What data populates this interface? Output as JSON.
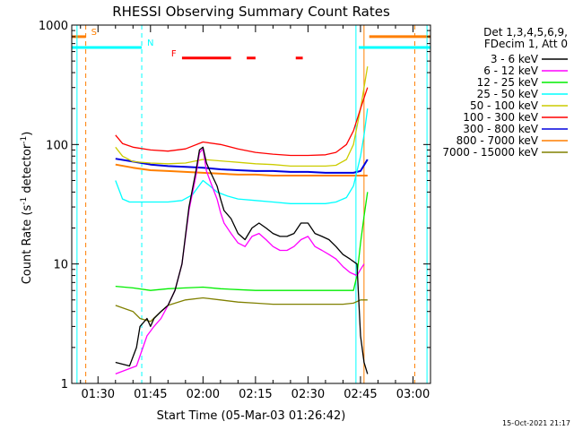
{
  "chart_data": {
    "type": "line",
    "title": "RHESSI Observing Summary Count Rates",
    "xlabel": "Start Time (05-Mar-03 01:26:42)",
    "ylabel_main": "Count Rate (s",
    "ylabel_sup": "-1",
    "ylabel_mid": " detector",
    "ylabel_sup2": "-1",
    "ylabel_end": ")",
    "yscale": "log",
    "ylim": [
      1,
      1000
    ],
    "xlim_minutes": [
      82.5,
      185
    ],
    "xticks": [
      {
        "label": "01:30",
        "minutes": 90
      },
      {
        "label": "01:45",
        "minutes": 105
      },
      {
        "label": "02:00",
        "minutes": 120
      },
      {
        "label": "02:15",
        "minutes": 135
      },
      {
        "label": "02:30",
        "minutes": 150
      },
      {
        "label": "02:45",
        "minutes": 165
      },
      {
        "label": "03:00",
        "minutes": 180
      }
    ],
    "yticks": [
      {
        "label": "1",
        "value": 1
      },
      {
        "label": "10",
        "value": 10
      },
      {
        "label": "100",
        "value": 100
      },
      {
        "label": "1000",
        "value": 1000
      }
    ],
    "legend_header": [
      "Det 1,3,4,5,6,9,",
      "FDecim 1, Att 0"
    ],
    "timestamp": "15-Oct-2021 21:17",
    "series": [
      {
        "name": "3 - 6 keV",
        "color": "#000000",
        "points": [
          [
            95,
            1.5
          ],
          [
            99,
            1.4
          ],
          [
            101,
            2
          ],
          [
            102,
            3
          ],
          [
            104,
            3.5
          ],
          [
            105,
            3
          ],
          [
            106,
            3.5
          ],
          [
            108,
            4
          ],
          [
            110,
            4.5
          ],
          [
            112,
            6
          ],
          [
            114,
            10
          ],
          [
            116,
            30
          ],
          [
            118,
            60
          ],
          [
            119,
            90
          ],
          [
            120,
            95
          ],
          [
            121,
            70
          ],
          [
            122,
            60
          ],
          [
            124,
            45
          ],
          [
            125,
            35
          ],
          [
            126,
            28
          ],
          [
            128,
            24
          ],
          [
            130,
            18
          ],
          [
            132,
            16
          ],
          [
            134,
            20
          ],
          [
            136,
            22
          ],
          [
            138,
            20
          ],
          [
            140,
            18
          ],
          [
            142,
            17
          ],
          [
            144,
            17
          ],
          [
            146,
            18
          ],
          [
            148,
            22
          ],
          [
            150,
            22
          ],
          [
            152,
            18
          ],
          [
            154,
            17
          ],
          [
            156,
            16
          ],
          [
            158,
            14
          ],
          [
            160,
            12
          ],
          [
            162,
            11
          ],
          [
            164,
            10
          ],
          [
            165,
            2.5
          ],
          [
            166,
            1.5
          ],
          [
            167,
            1.2
          ]
        ]
      },
      {
        "name": "6 - 12 keV",
        "color": "#ff00ff",
        "points": [
          [
            95,
            1.2
          ],
          [
            101,
            1.4
          ],
          [
            104,
            2.5
          ],
          [
            106,
            3
          ],
          [
            108,
            3.5
          ],
          [
            110,
            4.5
          ],
          [
            112,
            6
          ],
          [
            114,
            10
          ],
          [
            116,
            28
          ],
          [
            118,
            55
          ],
          [
            119,
            85
          ],
          [
            120,
            92
          ],
          [
            121,
            60
          ],
          [
            122,
            50
          ],
          [
            124,
            35
          ],
          [
            125,
            27
          ],
          [
            126,
            22
          ],
          [
            128,
            18
          ],
          [
            130,
            15
          ],
          [
            132,
            14
          ],
          [
            134,
            17
          ],
          [
            136,
            18
          ],
          [
            138,
            16
          ],
          [
            140,
            14
          ],
          [
            142,
            13
          ],
          [
            144,
            13
          ],
          [
            146,
            14
          ],
          [
            148,
            16
          ],
          [
            150,
            17
          ],
          [
            152,
            14
          ],
          [
            154,
            13
          ],
          [
            156,
            12
          ],
          [
            158,
            11
          ],
          [
            160,
            9.5
          ],
          [
            162,
            8.5
          ],
          [
            164,
            8
          ],
          [
            165,
            9
          ],
          [
            166,
            10
          ]
        ]
      },
      {
        "name": "12 - 25 keV",
        "color": "#00ee00",
        "points": [
          [
            95,
            6.5
          ],
          [
            100,
            6.3
          ],
          [
            105,
            6
          ],
          [
            110,
            6.2
          ],
          [
            115,
            6.3
          ],
          [
            120,
            6.4
          ],
          [
            125,
            6.2
          ],
          [
            130,
            6.1
          ],
          [
            135,
            6
          ],
          [
            140,
            6
          ],
          [
            145,
            6
          ],
          [
            150,
            6
          ],
          [
            155,
            6
          ],
          [
            160,
            6
          ],
          [
            163,
            6
          ],
          [
            164,
            8
          ],
          [
            165,
            15
          ],
          [
            166,
            25
          ],
          [
            167,
            40
          ]
        ]
      },
      {
        "name": "25 - 50 keV",
        "color": "#00ffff",
        "points": [
          [
            95,
            50
          ],
          [
            97,
            35
          ],
          [
            99,
            33
          ],
          [
            101,
            33
          ],
          [
            105,
            33
          ],
          [
            110,
            33
          ],
          [
            114,
            34
          ],
          [
            117,
            38
          ],
          [
            120,
            50
          ],
          [
            122,
            45
          ],
          [
            124,
            40
          ],
          [
            127,
            37
          ],
          [
            130,
            35
          ],
          [
            135,
            34
          ],
          [
            140,
            33
          ],
          [
            145,
            32
          ],
          [
            150,
            32
          ],
          [
            155,
            32
          ],
          [
            158,
            33
          ],
          [
            161,
            36
          ],
          [
            163,
            45
          ],
          [
            165,
            80
          ],
          [
            166,
            120
          ],
          [
            167,
            200
          ]
        ]
      },
      {
        "name": "50 - 100 keV",
        "color": "#cccc00",
        "points": [
          [
            95,
            95
          ],
          [
            97,
            80
          ],
          [
            100,
            72
          ],
          [
            105,
            70
          ],
          [
            110,
            69
          ],
          [
            115,
            70
          ],
          [
            120,
            75
          ],
          [
            125,
            73
          ],
          [
            130,
            71
          ],
          [
            135,
            69
          ],
          [
            140,
            68
          ],
          [
            145,
            66
          ],
          [
            150,
            66
          ],
          [
            155,
            66
          ],
          [
            158,
            67
          ],
          [
            161,
            75
          ],
          [
            163,
            100
          ],
          [
            165,
            200
          ],
          [
            166,
            300
          ],
          [
            167,
            450
          ]
        ]
      },
      {
        "name": "100 - 300 keV",
        "color": "#ff0000",
        "points": [
          [
            95,
            120
          ],
          [
            97,
            102
          ],
          [
            100,
            95
          ],
          [
            105,
            90
          ],
          [
            110,
            88
          ],
          [
            115,
            92
          ],
          [
            120,
            105
          ],
          [
            125,
            100
          ],
          [
            130,
            92
          ],
          [
            135,
            86
          ],
          [
            140,
            83
          ],
          [
            145,
            81
          ],
          [
            150,
            81
          ],
          [
            155,
            82
          ],
          [
            158,
            86
          ],
          [
            161,
            100
          ],
          [
            163,
            130
          ],
          [
            165,
            200
          ],
          [
            167,
            300
          ]
        ]
      },
      {
        "name": "300 - 800 keV",
        "color": "#0000dd",
        "points": [
          [
            95,
            76
          ],
          [
            100,
            72
          ],
          [
            105,
            68
          ],
          [
            110,
            66
          ],
          [
            115,
            65
          ],
          [
            120,
            64
          ],
          [
            125,
            62
          ],
          [
            130,
            61
          ],
          [
            135,
            60
          ],
          [
            140,
            60
          ],
          [
            145,
            59
          ],
          [
            150,
            59
          ],
          [
            155,
            58
          ],
          [
            160,
            58
          ],
          [
            163,
            58
          ],
          [
            165,
            60
          ],
          [
            167,
            75
          ]
        ]
      },
      {
        "name": "800 - 7000 keV",
        "color": "#ff7f00",
        "points": [
          [
            95,
            68
          ],
          [
            100,
            64
          ],
          [
            105,
            61
          ],
          [
            110,
            60
          ],
          [
            115,
            59
          ],
          [
            120,
            58
          ],
          [
            125,
            57
          ],
          [
            130,
            56
          ],
          [
            135,
            56
          ],
          [
            140,
            55
          ],
          [
            145,
            55
          ],
          [
            150,
            55
          ],
          [
            155,
            55
          ],
          [
            160,
            55
          ],
          [
            163,
            55
          ],
          [
            167,
            55
          ]
        ]
      },
      {
        "name": "7000 - 15000 keV",
        "color": "#808000",
        "points": [
          [
            95,
            4.5
          ],
          [
            100,
            4
          ],
          [
            102,
            3.5
          ],
          [
            105,
            3.3
          ],
          [
            108,
            4
          ],
          [
            110,
            4.5
          ],
          [
            115,
            5
          ],
          [
            120,
            5.2
          ],
          [
            125,
            5
          ],
          [
            130,
            4.8
          ],
          [
            135,
            4.7
          ],
          [
            140,
            4.6
          ],
          [
            145,
            4.6
          ],
          [
            150,
            4.6
          ],
          [
            155,
            4.6
          ],
          [
            160,
            4.6
          ],
          [
            163,
            4.7
          ],
          [
            165,
            5
          ],
          [
            167,
            5
          ]
        ]
      }
    ],
    "markers": [
      {
        "label": "S",
        "color": "#ff7f00",
        "level": 800,
        "segments": [
          [
            82.5,
            86.5
          ],
          [
            167.5,
            185
          ]
        ],
        "dashed_line_at": [
          86.5,
          180.5
        ],
        "solid_line_at": [
          166
        ]
      },
      {
        "label": "N",
        "color": "#00ffff",
        "level": 650,
        "segments": [
          [
            82.5,
            102.5
          ],
          [
            164.5,
            185
          ]
        ],
        "dashed_line_at": [
          102.5
        ],
        "solid_line_at": [
          84,
          163.7,
          184
        ]
      },
      {
        "label": "F",
        "color": "#ff0000",
        "level": 530,
        "segments": [
          [
            114,
            128
          ],
          [
            132.5,
            135
          ],
          [
            146.5,
            148.5
          ]
        ]
      }
    ]
  }
}
